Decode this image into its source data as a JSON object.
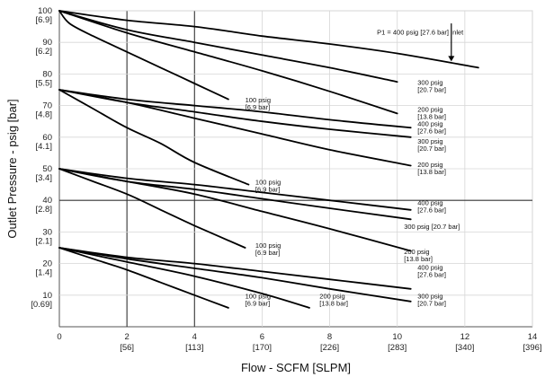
{
  "chart_data": {
    "type": "line",
    "xlabel": "Flow - SCFM [SLPM]",
    "ylabel": "Outlet Pressure - psig [bar]",
    "xlim": [
      0,
      14
    ],
    "ylim": [
      0,
      100
    ],
    "x_ticks": [
      {
        "v": 0,
        "label": "0",
        "sub": ""
      },
      {
        "v": 2,
        "label": "2",
        "sub": "[56]"
      },
      {
        "v": 4,
        "label": "4",
        "sub": "[113]"
      },
      {
        "v": 6,
        "label": "6",
        "sub": "[170]"
      },
      {
        "v": 8,
        "label": "8",
        "sub": "[226]"
      },
      {
        "v": 10,
        "label": "10",
        "sub": "[283]"
      },
      {
        "v": 12,
        "label": "12",
        "sub": "[340]"
      },
      {
        "v": 14,
        "label": "14",
        "sub": "[396]"
      }
    ],
    "y_ticks": [
      {
        "v": 100,
        "label": "100",
        "sub": "[6.9]"
      },
      {
        "v": 90,
        "label": "90",
        "sub": "[6.2]"
      },
      {
        "v": 80,
        "label": "80",
        "sub": "[5.5]"
      },
      {
        "v": 70,
        "label": "70",
        "sub": "[4.8]"
      },
      {
        "v": 60,
        "label": "60",
        "sub": "[4.1]"
      },
      {
        "v": 50,
        "label": "50",
        "sub": "[3.4]"
      },
      {
        "v": 40,
        "label": "40",
        "sub": "[2.8]"
      },
      {
        "v": 30,
        "label": "30",
        "sub": "[2.1]"
      },
      {
        "v": 20,
        "label": "20",
        "sub": "[1.4]"
      },
      {
        "v": 10,
        "label": "10",
        "sub": "[0.69]"
      }
    ],
    "grid_x": [
      2,
      4
    ],
    "grid_y": [
      40
    ],
    "series": [
      {
        "name": "Inlet 100 psig [6.9 bar] @ 100",
        "points": [
          [
            0,
            100
          ],
          [
            0.3,
            96
          ],
          [
            1,
            92
          ],
          [
            2,
            87
          ],
          [
            3,
            82
          ],
          [
            4,
            77
          ],
          [
            5,
            72
          ]
        ]
      },
      {
        "name": "Inlet 300 psig [20.7 bar] @ 100",
        "points": [
          [
            0,
            100
          ],
          [
            2,
            94
          ],
          [
            4,
            90
          ],
          [
            6,
            86
          ],
          [
            8,
            82
          ],
          [
            10,
            77.5
          ]
        ]
      },
      {
        "name": "Inlet 200 psig [13.8 bar] @ 100",
        "points": [
          [
            0,
            100
          ],
          [
            2,
            93
          ],
          [
            4,
            87
          ],
          [
            6,
            81
          ],
          [
            8,
            74.5
          ],
          [
            10,
            67.5
          ]
        ]
      },
      {
        "name": "Inlet 400 psig [27.6 bar] @ 100",
        "points": [
          [
            0,
            100
          ],
          [
            2,
            97
          ],
          [
            4,
            95
          ],
          [
            6,
            92
          ],
          [
            8,
            89.5
          ],
          [
            10,
            86.5
          ],
          [
            12.4,
            82
          ]
        ]
      },
      {
        "name": "Inlet 100 psig [6.9 bar] @ 75",
        "points": [
          [
            0,
            75
          ],
          [
            1,
            69
          ],
          [
            2,
            63
          ],
          [
            3,
            58
          ],
          [
            4,
            52
          ],
          [
            5.6,
            45
          ]
        ]
      },
      {
        "name": "Inlet 400 psig [27.6 bar] @ 75",
        "points": [
          [
            0,
            75
          ],
          [
            2,
            72
          ],
          [
            4,
            70
          ],
          [
            6,
            68
          ],
          [
            8,
            65.5
          ],
          [
            10.4,
            63
          ]
        ]
      },
      {
        "name": "Inlet 300 psig [20.7 bar] @ 75",
        "points": [
          [
            0,
            75
          ],
          [
            2,
            71
          ],
          [
            4,
            68
          ],
          [
            6,
            65
          ],
          [
            8,
            62.5
          ],
          [
            10.4,
            60
          ]
        ]
      },
      {
        "name": "Inlet 200 psig [13.8 bar] @ 75",
        "points": [
          [
            0,
            75
          ],
          [
            2,
            71
          ],
          [
            4,
            66
          ],
          [
            6,
            61
          ],
          [
            8,
            56
          ],
          [
            10.4,
            51
          ]
        ]
      },
      {
        "name": "Inlet 100 psig [6.9 bar] @ 50",
        "points": [
          [
            0,
            50
          ],
          [
            1,
            46
          ],
          [
            2,
            42
          ],
          [
            3,
            37
          ],
          [
            4,
            32
          ],
          [
            5.5,
            25
          ]
        ]
      },
      {
        "name": "Inlet 400 psig [27.6 bar] @ 50",
        "points": [
          [
            0,
            50
          ],
          [
            2,
            47
          ],
          [
            4,
            45
          ],
          [
            6,
            42.5
          ],
          [
            8,
            40
          ],
          [
            10.4,
            37
          ]
        ]
      },
      {
        "name": "Inlet 300 psig [20.7 bar] @ 50",
        "points": [
          [
            0,
            50
          ],
          [
            2,
            46
          ],
          [
            4,
            43.5
          ],
          [
            6,
            40.5
          ],
          [
            8,
            37.5
          ],
          [
            10.4,
            34
          ]
        ]
      },
      {
        "name": "Inlet 200 psig [13.8 bar] @ 50",
        "points": [
          [
            0,
            50
          ],
          [
            2,
            46
          ],
          [
            4,
            42
          ],
          [
            6,
            36.5
          ],
          [
            8,
            31
          ],
          [
            10.4,
            24
          ]
        ]
      },
      {
        "name": "Inlet 100 psig [6.9 bar] @ 25",
        "points": [
          [
            0,
            25
          ],
          [
            1,
            21.5
          ],
          [
            2,
            18
          ],
          [
            3,
            14
          ],
          [
            4,
            10
          ],
          [
            5,
            6
          ]
        ]
      },
      {
        "name": "Inlet 200 psig [13.8 bar] @ 25",
        "points": [
          [
            0,
            25
          ],
          [
            2,
            20.5
          ],
          [
            4,
            16
          ],
          [
            6,
            10.5
          ],
          [
            7.4,
            6
          ]
        ]
      },
      {
        "name": "Inlet 400 psig [27.6 bar] @ 25",
        "points": [
          [
            0,
            25
          ],
          [
            2,
            22
          ],
          [
            4,
            20
          ],
          [
            6,
            17.5
          ],
          [
            8,
            15
          ],
          [
            10.4,
            12
          ]
        ]
      },
      {
        "name": "Inlet 300 psig [20.7 bar] @ 25",
        "points": [
          [
            0,
            25
          ],
          [
            2,
            21.5
          ],
          [
            4,
            18.5
          ],
          [
            6,
            15.5
          ],
          [
            8,
            12
          ],
          [
            10.4,
            8
          ]
        ]
      }
    ],
    "annotations": [
      {
        "lines": [
          "100 psig",
          "[6.9 bar]"
        ],
        "x": 5.5,
        "y": 71,
        "anchor": "start"
      },
      {
        "lines": [
          "300 psig",
          "[20.7 bar]"
        ],
        "x": 10.6,
        "y": 76.5,
        "anchor": "start"
      },
      {
        "lines": [
          "200 psig",
          "[13.8 bar]"
        ],
        "x": 10.6,
        "y": 68,
        "anchor": "start"
      },
      {
        "lines": [
          "P1 = 400 psig [27.6 bar] Inlet"
        ],
        "x": 9.4,
        "y": 92.5,
        "anchor": "start"
      },
      {
        "lines": [
          "100 psig",
          "[6.9 bar]"
        ],
        "x": 5.8,
        "y": 45,
        "anchor": "start"
      },
      {
        "lines": [
          "400 psig",
          "[27.6 bar]"
        ],
        "x": 10.6,
        "y": 63.5,
        "anchor": "start"
      },
      {
        "lines": [
          "300 psig",
          "[20.7 bar]"
        ],
        "x": 10.6,
        "y": 58,
        "anchor": "start"
      },
      {
        "lines": [
          "200 psig",
          "[13.8 bar]"
        ],
        "x": 10.6,
        "y": 50.5,
        "anchor": "start"
      },
      {
        "lines": [
          "100 psig",
          "[6.9 bar]"
        ],
        "x": 5.8,
        "y": 25,
        "anchor": "start"
      },
      {
        "lines": [
          "400 psig",
          "[27.6 bar]"
        ],
        "x": 10.6,
        "y": 38.5,
        "anchor": "start"
      },
      {
        "lines": [
          "300 psig [20.7 bar]"
        ],
        "x": 10.2,
        "y": 31,
        "anchor": "start"
      },
      {
        "lines": [
          "200 psig",
          "[13.8 bar]"
        ],
        "x": 10.2,
        "y": 23,
        "anchor": "start"
      },
      {
        "lines": [
          "100 psig",
          "[6.9 bar]"
        ],
        "x": 5.5,
        "y": 9,
        "anchor": "start"
      },
      {
        "lines": [
          "200 psig",
          "[13.8 bar]"
        ],
        "x": 7.7,
        "y": 9,
        "anchor": "start"
      },
      {
        "lines": [
          "400 psig",
          "[27.6 bar]"
        ],
        "x": 10.6,
        "y": 18,
        "anchor": "start"
      },
      {
        "lines": [
          "300 psig",
          "[20.7 bar]"
        ],
        "x": 10.6,
        "y": 9,
        "anchor": "start"
      }
    ],
    "arrow": {
      "x": 11.6,
      "y_from": 96,
      "y_to": 84
    }
  }
}
